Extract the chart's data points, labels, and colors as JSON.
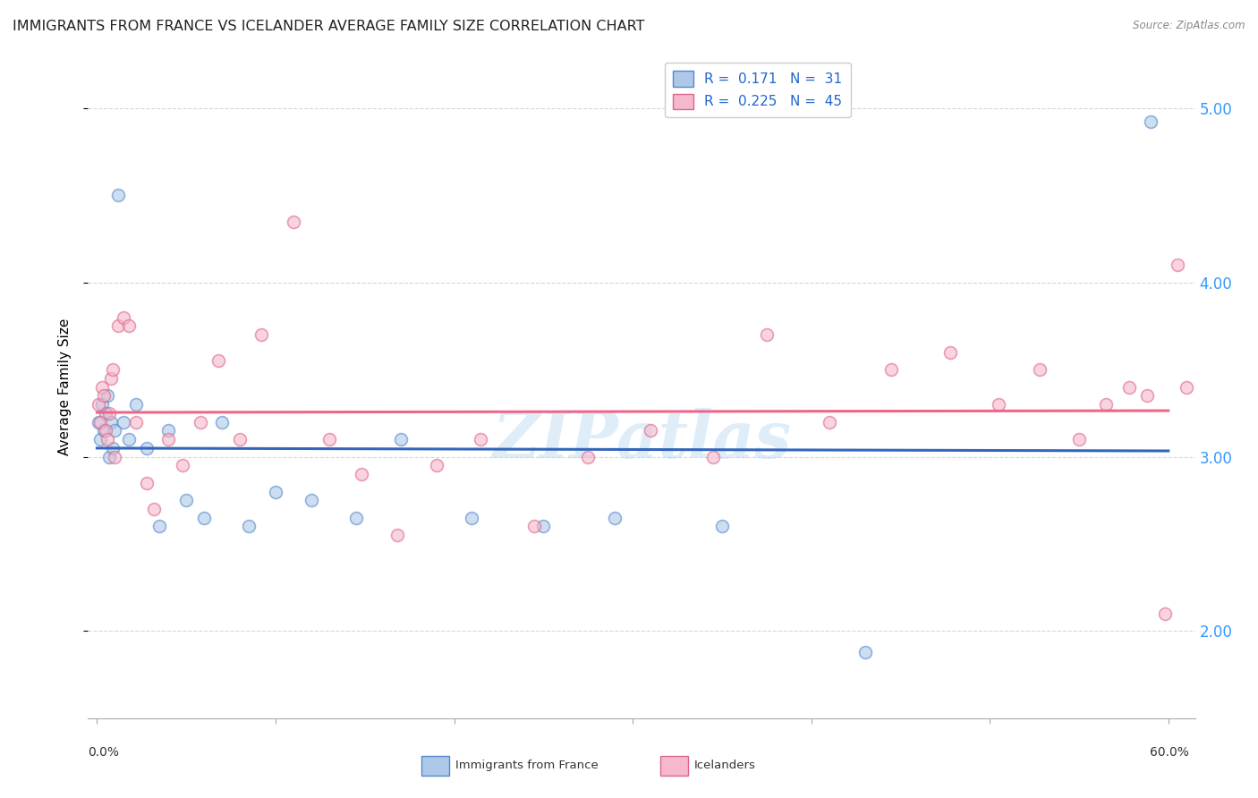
{
  "title": "IMMIGRANTS FROM FRANCE VS ICELANDER AVERAGE FAMILY SIZE CORRELATION CHART",
  "source": "Source: ZipAtlas.com",
  "ylabel": "Average Family Size",
  "xlim": [
    -0.005,
    0.615
  ],
  "ylim": [
    1.5,
    5.3
  ],
  "yticks": [
    2.0,
    3.0,
    4.0,
    5.0
  ],
  "xtick_positions": [
    0.0,
    0.1,
    0.2,
    0.3,
    0.4,
    0.5,
    0.6
  ],
  "series1_label": "Immigrants from France",
  "series1_color": "#adc8e8",
  "series1_edge_color": "#5588cc",
  "series1_R": 0.171,
  "series1_N": 31,
  "series1_line_color": "#3366bb",
  "series2_label": "Icelanders",
  "series2_color": "#f5b8cc",
  "series2_edge_color": "#dd6688",
  "series2_R": 0.225,
  "series2_N": 45,
  "series2_line_color": "#ee6688",
  "background_color": "#ffffff",
  "grid_color": "#cccccc",
  "title_fontsize": 11.5,
  "axis_fontsize": 10,
  "watermark": "ZIPatlas",
  "scatter_size": 100,
  "scatter_alpha": 0.6,
  "france_x": [
    0.001,
    0.002,
    0.003,
    0.004,
    0.005,
    0.006,
    0.007,
    0.008,
    0.009,
    0.01,
    0.012,
    0.015,
    0.018,
    0.022,
    0.028,
    0.035,
    0.04,
    0.05,
    0.06,
    0.07,
    0.085,
    0.1,
    0.12,
    0.145,
    0.17,
    0.21,
    0.25,
    0.29,
    0.35,
    0.43,
    0.59
  ],
  "france_y": [
    3.2,
    3.1,
    3.3,
    3.15,
    3.25,
    3.35,
    3.0,
    3.2,
    3.05,
    3.15,
    4.5,
    3.2,
    3.1,
    3.3,
    3.05,
    2.6,
    3.15,
    2.75,
    2.65,
    3.2,
    2.6,
    2.8,
    2.75,
    2.65,
    3.1,
    2.65,
    2.6,
    2.65,
    2.6,
    1.88,
    4.92
  ],
  "iceland_x": [
    0.001,
    0.002,
    0.003,
    0.004,
    0.005,
    0.006,
    0.007,
    0.008,
    0.009,
    0.01,
    0.012,
    0.015,
    0.018,
    0.022,
    0.028,
    0.032,
    0.04,
    0.048,
    0.058,
    0.068,
    0.08,
    0.092,
    0.11,
    0.13,
    0.148,
    0.168,
    0.19,
    0.215,
    0.245,
    0.275,
    0.31,
    0.345,
    0.375,
    0.41,
    0.445,
    0.478,
    0.505,
    0.528,
    0.55,
    0.565,
    0.578,
    0.588,
    0.598,
    0.605,
    0.61
  ],
  "iceland_y": [
    3.3,
    3.2,
    3.4,
    3.35,
    3.15,
    3.1,
    3.25,
    3.45,
    3.5,
    3.0,
    3.75,
    3.8,
    3.75,
    3.2,
    2.85,
    2.7,
    3.1,
    2.95,
    3.2,
    3.55,
    3.1,
    3.7,
    4.35,
    3.1,
    2.9,
    2.55,
    2.95,
    3.1,
    2.6,
    3.0,
    3.15,
    3.0,
    3.7,
    3.2,
    3.5,
    3.6,
    3.3,
    3.5,
    3.1,
    3.3,
    3.4,
    3.35,
    2.1,
    4.1,
    3.4
  ]
}
